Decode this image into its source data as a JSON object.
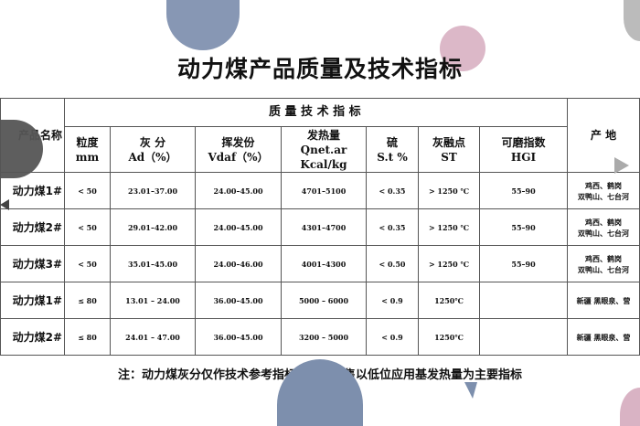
{
  "title": "动力煤产品质量及技术指标",
  "table": {
    "group_header": "质 量 技 术 指 标",
    "name_header": "产品名称",
    "origin_header": "产 地",
    "columns": [
      [
        "粒度",
        "mm",
        ""
      ],
      [
        "灰  分",
        "Ad（%）",
        ""
      ],
      [
        "挥发份",
        "Vdaf（%）",
        ""
      ],
      [
        "发热量",
        "Qnet.ar",
        "Kcal/kg"
      ],
      [
        "硫",
        "S.t  %",
        ""
      ],
      [
        "灰融点",
        "ST",
        ""
      ],
      [
        "可磨指数",
        "HGI",
        ""
      ]
    ],
    "rows": [
      {
        "name": "动力煤1#",
        "cells": [
          "< 50",
          "23.01–37.00",
          "24.00–45.00",
          "4701–5100",
          "< 0.35",
          "> 1250 ℃",
          "55–90"
        ],
        "origin": [
          "鸡西、鹤岗",
          "双鸭山、七台河"
        ]
      },
      {
        "name": "动力煤2#",
        "cells": [
          "< 50",
          "29.01–42.00",
          "24.00–45.00",
          "4301–4700",
          "< 0.35",
          "> 1250 ℃",
          "55–90"
        ],
        "origin": [
          "鸡西、鹤岗",
          "双鸭山、七台河"
        ]
      },
      {
        "name": "动力煤3#",
        "cells": [
          "< 50",
          "35.01–45.00",
          "24.00–46.00",
          "4001–4300",
          "< 0.50",
          "> 1250 ℃",
          "55–90"
        ],
        "origin": [
          "鸡西、鹤岗",
          "双鸭山、七台河"
        ]
      },
      {
        "name": "动力煤1#",
        "cells": [
          "≤ 80",
          "13.01 – 24.00",
          "36.00–45.00",
          "5000 – 6000",
          "< 0.9",
          "1250℃",
          ""
        ],
        "origin": [
          "新疆 黑眼泉、营",
          ""
        ]
      },
      {
        "name": "动力煤2#",
        "cells": [
          "≤ 80",
          "24.01 – 47.00",
          "36.00–45.00",
          "3200 – 5000",
          "< 0.9",
          "1250℃",
          ""
        ],
        "origin": [
          "新疆 黑眼泉、营",
          ""
        ]
      }
    ]
  },
  "note": "注：动力煤灰分仅作技术参考指标，煤炭销售以低位应用基发热量为主要指标",
  "colors": {
    "blue_circle": "#7d8fad",
    "pink_circle": "#d9b3c4",
    "gray_circle": "#4a4a4a",
    "light_gray": "#aaaaaa"
  }
}
